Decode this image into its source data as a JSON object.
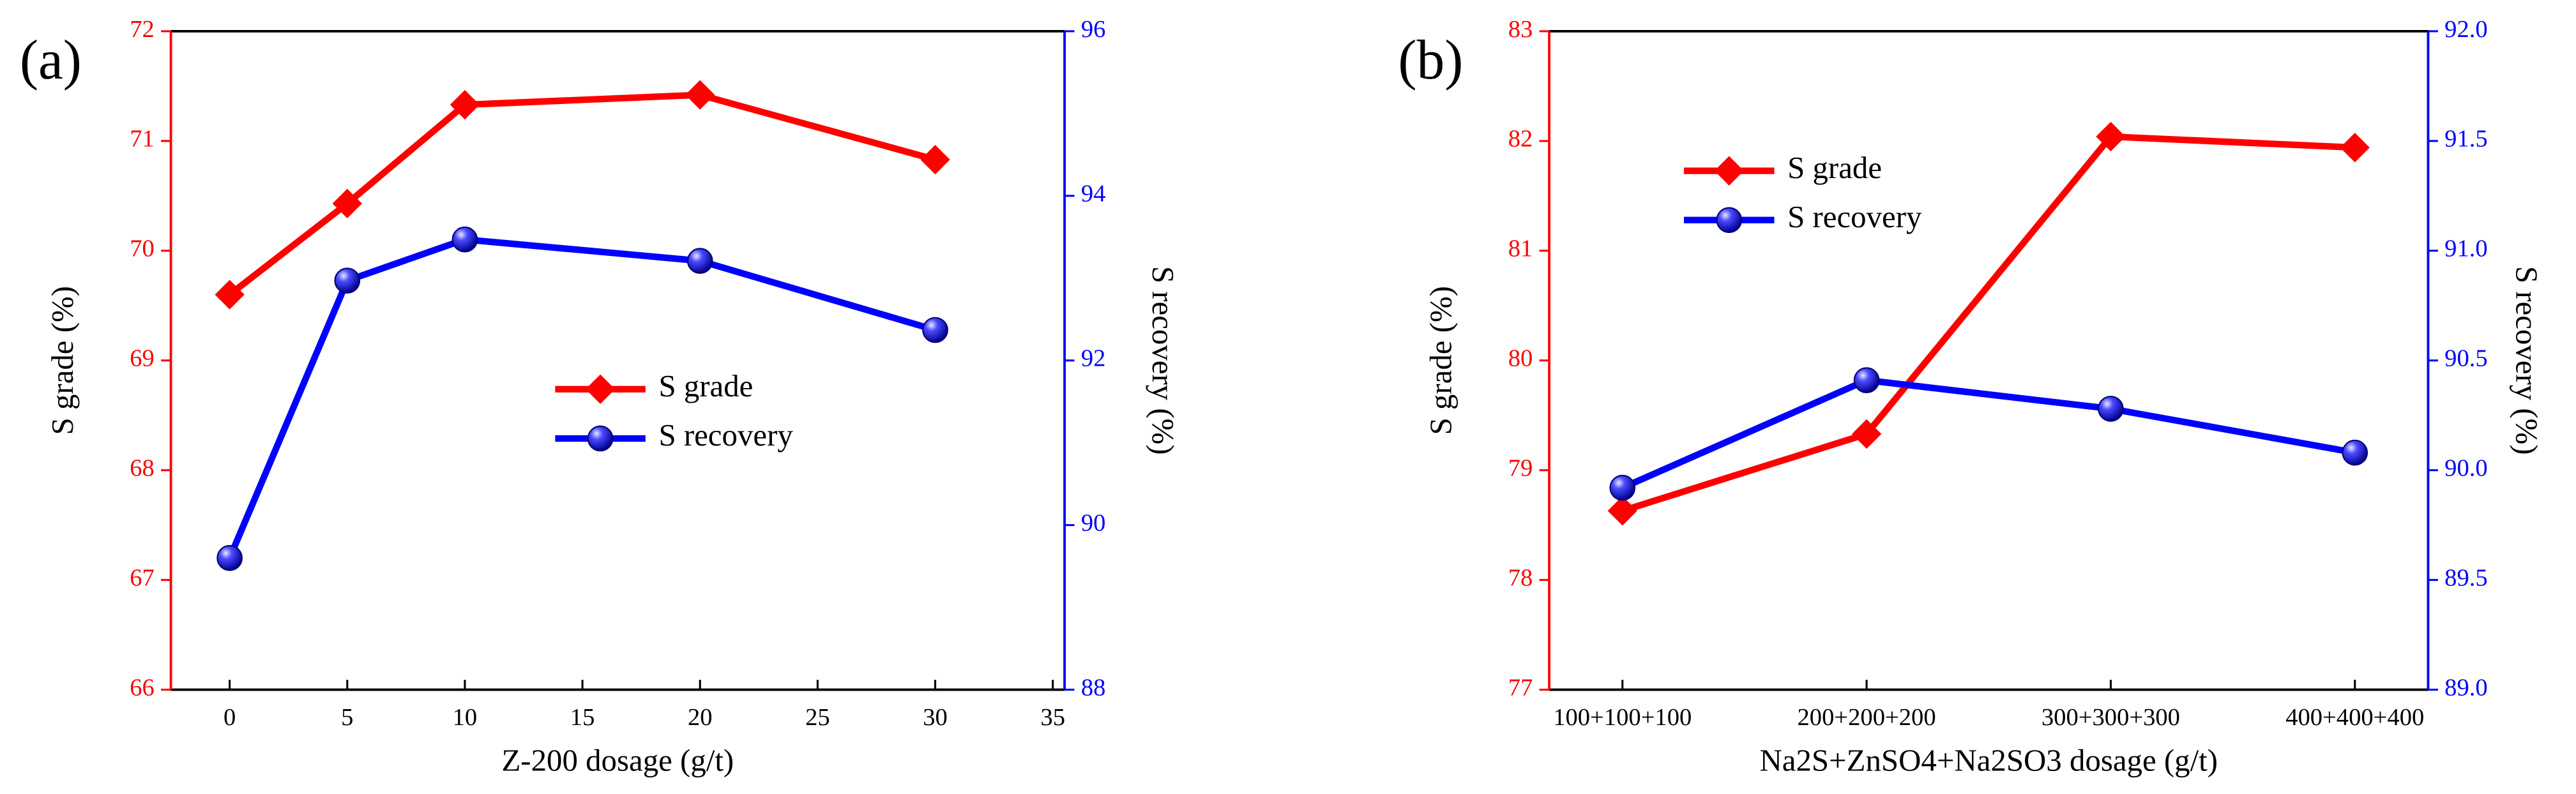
{
  "chart_data": [
    {
      "type": "line",
      "title": "(a)",
      "x": [
        0,
        5,
        10,
        20,
        30
      ],
      "xlim": [
        -2.5,
        35.5
      ],
      "xticks": [
        0,
        5,
        10,
        15,
        20,
        25,
        30,
        35
      ],
      "ylim": [
        66,
        72
      ],
      "yticks": [
        66,
        67,
        68,
        69,
        70,
        71,
        72
      ],
      "y2lim": [
        88,
        96
      ],
      "y2ticks": [
        88,
        90,
        92,
        94,
        96
      ],
      "xlabel": "Z-200 dosage (g/t)",
      "ylabel": "S grade (%)",
      "y2label": "S recovery (%)",
      "ycolor": "#ff0000",
      "y2color": "#0000ff",
      "legend": "center",
      "series": [
        {
          "name": "S grade",
          "color": "#ff0000",
          "marker": "diamond",
          "values": [
            69.6,
            70.43,
            71.33,
            71.42,
            70.83
          ]
        },
        {
          "name": "S recovery",
          "color": "#0000ff",
          "marker": "sphere",
          "axis": "y2",
          "values": [
            89.6,
            92.97,
            93.47,
            93.21,
            92.37
          ]
        }
      ]
    },
    {
      "type": "line",
      "title": "(b)",
      "categories": [
        "100+100+100",
        "200+200+200",
        "300+300+300",
        "400+400+400"
      ],
      "ylim": [
        77,
        83
      ],
      "yticks": [
        77,
        78,
        79,
        80,
        81,
        82,
        83
      ],
      "y2lim": [
        89,
        92
      ],
      "y2ticks": [
        {
          "value": 89,
          "label": "89.0"
        },
        {
          "value": 89.5,
          "label": "89.5"
        },
        {
          "value": 90,
          "label": "90.0"
        },
        {
          "value": 90.5,
          "label": "90.5"
        },
        {
          "value": 91,
          "label": "91.0"
        },
        {
          "value": 91.5,
          "label": "91.5"
        },
        {
          "value": 92,
          "label": "92.0"
        }
      ],
      "xlabel": "Na2S+ZnSO4+Na2SO3 dosage (g/t)",
      "ylabel": "S grade (%)",
      "y2label": "S recovery (%)",
      "ycolor": "#ff0000",
      "y2color": "#0000ff",
      "legend": "upper left",
      "series": [
        {
          "name": "S grade",
          "color": "#ff0000",
          "marker": "diamond",
          "values": [
            78.63,
            79.33,
            82.04,
            81.94
          ]
        },
        {
          "name": "S recovery",
          "color": "#0000ff",
          "marker": "sphere",
          "axis": "y2",
          "values": [
            89.92,
            90.41,
            90.28,
            90.08
          ]
        }
      ]
    }
  ]
}
